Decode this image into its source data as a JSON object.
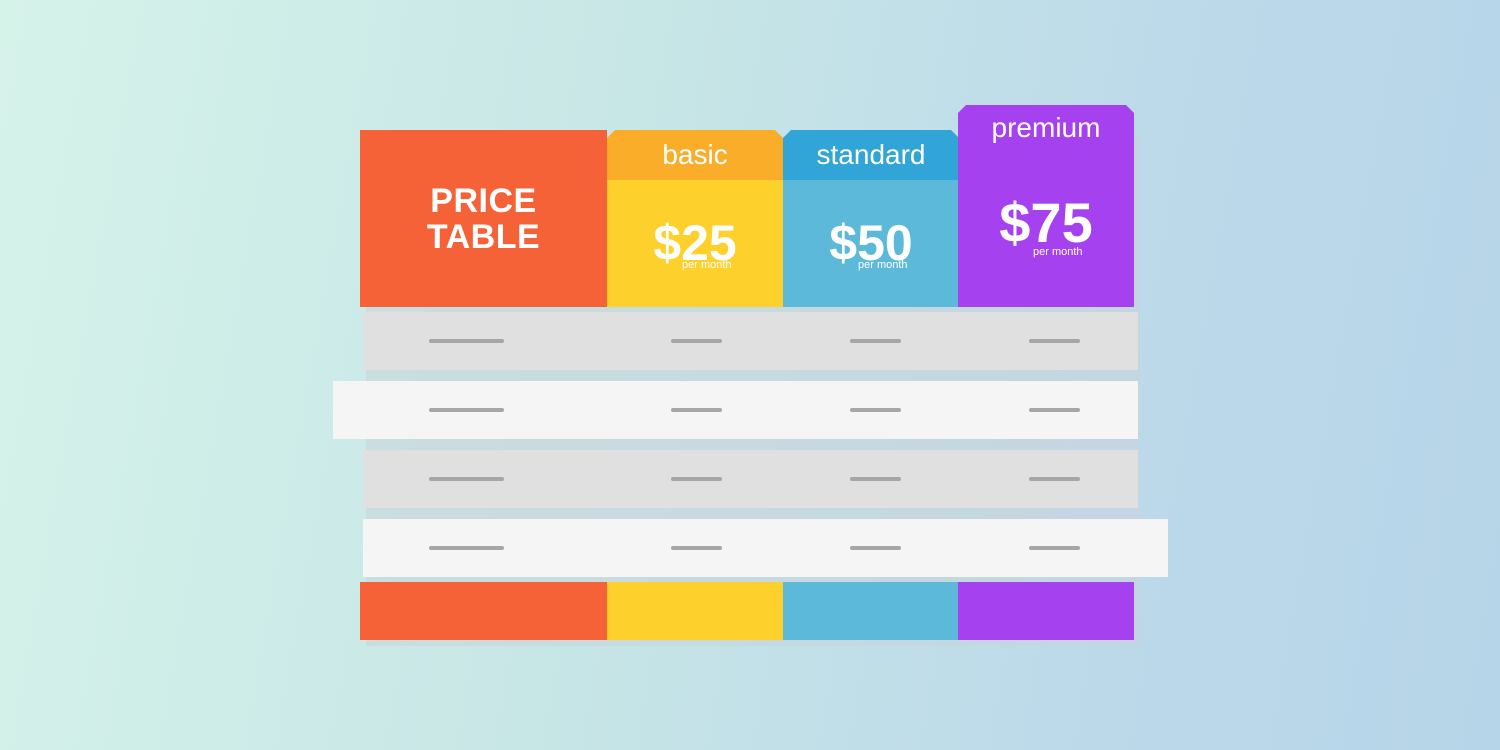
{
  "title": {
    "line1": "PRICE",
    "line2": "TABLE"
  },
  "plans": [
    {
      "name": "basic",
      "price": "$25",
      "period": "per month",
      "color": "#fed02b",
      "tab_color": "#f9ad29"
    },
    {
      "name": "standard",
      "price": "$50",
      "period": "per month",
      "color": "#5cb9da",
      "tab_color": "#31a5d8"
    },
    {
      "name": "premium",
      "price": "$75",
      "period": "per month",
      "color": "#a541ee"
    }
  ],
  "title_color": "#f66237",
  "rows": 4
}
